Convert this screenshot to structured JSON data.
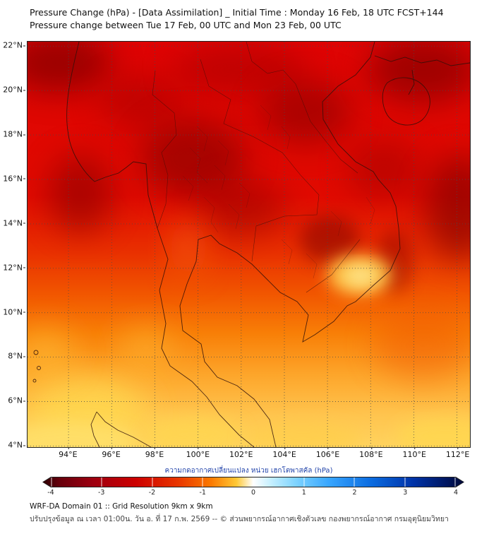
{
  "header": {
    "title": "Pressure Change (hPa) - [Data Assimilation] _ Initial Time : Monday 16 Feb, 18 UTC FCST+144",
    "subtitle": "Pressure change between Tue 17 Feb, 00 UTC and Mon 23 Feb, 00 UTC"
  },
  "chart_data": {
    "type": "heatmap",
    "title": "Pressure Change (hPa) - [Data Assimilation] _ Initial Time : Monday 16 Feb, 18 UTC FCST+144",
    "subtitle": "Pressure change between Tue 17 Feb, 00 UTC and Mon 23 Feb, 00 UTC",
    "grid": "dotted",
    "units": "hPa",
    "x_axis": {
      "label": "Longitude",
      "ticks": [
        "94°E",
        "96°E",
        "98°E",
        "100°E",
        "102°E",
        "104°E",
        "106°E",
        "108°E",
        "110°E",
        "112°E"
      ],
      "tick_values": [
        94,
        96,
        98,
        100,
        102,
        104,
        106,
        108,
        110,
        112
      ],
      "range": [
        92.1,
        112.6
      ]
    },
    "y_axis": {
      "label": "Latitude",
      "ticks": [
        "22°N",
        "20°N",
        "18°N",
        "16°N",
        "14°N",
        "12°N",
        "10°N",
        "8°N",
        "6°N",
        "4°N"
      ],
      "tick_values": [
        22,
        20,
        18,
        16,
        14,
        12,
        10,
        8,
        6,
        4
      ],
      "range": [
        3.95,
        22.2
      ]
    },
    "field_grid": {
      "values_estimated_from_colors": true,
      "lats": [
        22,
        20,
        18,
        16,
        14,
        12,
        10,
        8,
        6,
        4
      ],
      "lons": [
        94,
        96,
        98,
        100,
        102,
        104,
        106,
        108,
        110,
        112
      ],
      "pressure_change_hpa": [
        [
          -3.3,
          -2.9,
          -2.7,
          -2.8,
          -3.0,
          -2.8,
          -2.7,
          -2.8,
          -3.1,
          -3.3
        ],
        [
          -3.0,
          -2.7,
          -2.7,
          -2.9,
          -3.1,
          -2.9,
          -2.7,
          -2.9,
          -3.1,
          -3.1
        ],
        [
          -2.7,
          -2.5,
          -2.9,
          -3.2,
          -3.0,
          -2.9,
          -2.9,
          -3.1,
          -3.3,
          -3.4
        ],
        [
          -3.1,
          -2.7,
          -2.9,
          -3.2,
          -3.4,
          -3.0,
          -2.9,
          -3.1,
          -3.4,
          -3.3
        ],
        [
          -2.3,
          -2.5,
          -2.7,
          -2.9,
          -3.1,
          -3.2,
          -2.9,
          -3.0,
          -2.9,
          -2.7
        ],
        [
          -1.9,
          -2.1,
          -2.3,
          -2.5,
          -2.7,
          -2.6,
          -2.3,
          -1.3,
          -2.3,
          -2.5
        ],
        [
          -1.6,
          -1.7,
          -1.9,
          -2.1,
          -2.2,
          -2.1,
          -1.9,
          -1.7,
          -2.1,
          -2.2
        ],
        [
          -1.3,
          -1.4,
          -1.6,
          -1.7,
          -1.8,
          -1.7,
          -1.5,
          -1.5,
          -1.7,
          -1.8
        ],
        [
          -1.1,
          -1.2,
          -1.3,
          -1.5,
          -1.6,
          -1.5,
          -1.3,
          -1.5,
          -1.6,
          -1.7
        ],
        [
          -0.9,
          -1.0,
          -1.1,
          -1.3,
          -1.3,
          -1.3,
          -1.1,
          -1.3,
          -1.5,
          -1.5
        ]
      ]
    },
    "colorbar_ticks": [
      -4,
      -3,
      -2,
      -1,
      0,
      1,
      2,
      3,
      4
    ],
    "legend_position": "bottom"
  },
  "colorbar": {
    "label": "ความกดอากาศเปลี่ยนแปลง หน่วย เฮกโตพาสคัล (hPa)",
    "ticks": [
      "-4",
      "-3",
      "-2",
      "-1",
      "0",
      "1",
      "2",
      "3",
      "4"
    ],
    "stops": [
      "#2d0004 0%",
      "#67000c 4%",
      "#9e0010 12%",
      "#cc0000 22%",
      "#e83500 32%",
      "#fb7a00 40%",
      "#ffc835 46%",
      "#ffffff 50%",
      "#c8f0ff 54%",
      "#7fd4ff 60%",
      "#38a6ff 68%",
      "#0b6ce0 78%",
      "#0033a8 88%",
      "#001660 96%",
      "#000a38 100%"
    ]
  },
  "footer": {
    "line1": "WRF-DA Domain 01 :: Grid Resolution 9km x 9km",
    "line2": "ปรับปรุงข้อมูล ณ เวลา 01:00น. วัน อ. ที่ 17 ก.พ. 2569 -- © ส่วนพยากรณ์อากาศเชิงตัวเลข กองพยากรณ์อากาศ กรมอุตุนิยมวิทยา"
  }
}
